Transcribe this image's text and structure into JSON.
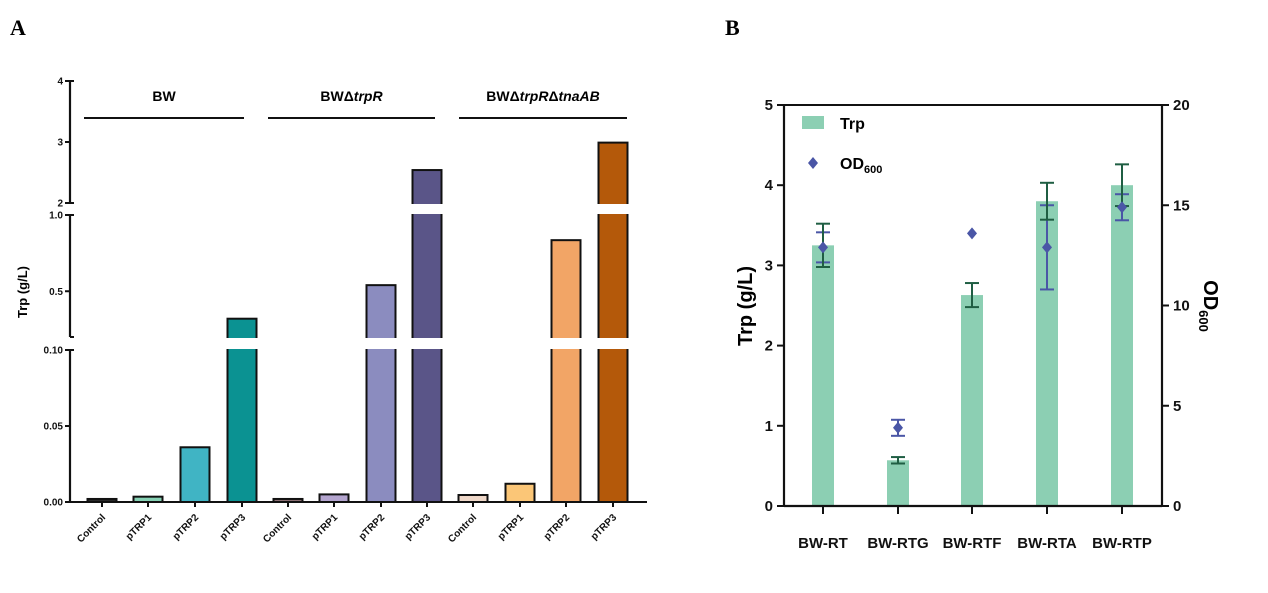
{
  "panels": {
    "a": "A",
    "b": "B"
  },
  "chart_data": [
    {
      "type": "bar",
      "title": "A",
      "ylabel": "Trp (g/L)",
      "xlabel": "",
      "axis_segments": [
        {
          "range": [
            0,
            0.1
          ],
          "ticks": [
            "0.00",
            "0.05",
            "0.10"
          ]
        },
        {
          "range": [
            0.2,
            1.0
          ],
          "ticks": [
            "0.5",
            "1.0"
          ]
        },
        {
          "range": [
            2,
            4
          ],
          "ticks": [
            "2",
            "3",
            "4"
          ]
        }
      ],
      "groups": [
        {
          "name": "BW",
          "name_parts": [
            {
              "t": "BW",
              "i": false
            }
          ],
          "categories": [
            "Control",
            "pTRP1",
            "pTRP2",
            "pTRP3"
          ],
          "values": [
            0.002,
            0.0035,
            0.036,
            0.32
          ],
          "colors": [
            "#2a2a2a",
            "#86d1b4",
            "#40b4c4",
            "#0b9292"
          ]
        },
        {
          "name": "BWΔtrpR",
          "name_parts": [
            {
              "t": "BW",
              "i": false
            },
            {
              "t": "Δ",
              "i": false
            },
            {
              "t": "trpR",
              "i": true
            }
          ],
          "categories": [
            "Control",
            "pTRP1",
            "pTRP2",
            "pTRP3"
          ],
          "values": [
            0.002,
            0.005,
            0.54,
            2.54
          ],
          "colors": [
            "#8a6e72",
            "#b4a5cf",
            "#8b8cbf",
            "#5a5588"
          ]
        },
        {
          "name": "BWΔtrpRΔtnaAB",
          "name_parts": [
            {
              "t": "BW",
              "i": false
            },
            {
              "t": "Δ",
              "i": false
            },
            {
              "t": "trpR",
              "i": true
            },
            {
              "t": "Δ",
              "i": false
            },
            {
              "t": "tnaAB",
              "i": true
            }
          ],
          "categories": [
            "Control",
            "pTRP1",
            "pTRP2",
            "pTRP3"
          ],
          "values": [
            0.0046,
            0.012,
            0.835,
            2.99
          ],
          "colors": [
            "#efd8c9",
            "#fbc677",
            "#f2a566",
            "#b4590a"
          ]
        }
      ]
    },
    {
      "type": "bar",
      "title": "B",
      "ylabel": "Trp (g/L)",
      "y2label": "OD600",
      "ylim": [
        0,
        5
      ],
      "y2lim": [
        0,
        20
      ],
      "yticks": [
        "0",
        "1",
        "2",
        "3",
        "4",
        "5"
      ],
      "y2ticks": [
        "0",
        "5",
        "10",
        "15",
        "20"
      ],
      "categories": [
        "BW-RT",
        "BW-RTG",
        "BW-RTF",
        "BW-RTA",
        "BW-RTP"
      ],
      "legend": {
        "placement": "top-left",
        "entries": [
          "Trp",
          "OD600"
        ]
      },
      "series": [
        {
          "name": "Trp",
          "kind": "bar",
          "axis": "left",
          "color": "#8ccfb3",
          "error_color": "#1f5e43",
          "values": [
            3.25,
            0.57,
            2.63,
            3.8,
            4.0
          ],
          "errors": [
            0.27,
            0.04,
            0.15,
            0.23,
            0.26
          ]
        },
        {
          "name": "OD600",
          "kind": "scatter",
          "marker": "diamond",
          "axis": "right",
          "color": "#4a56a6",
          "values": [
            12.9,
            3.9,
            13.6,
            12.9,
            14.9
          ],
          "errors": [
            0.75,
            0.4,
            0,
            2.1,
            0.65
          ]
        }
      ]
    }
  ]
}
